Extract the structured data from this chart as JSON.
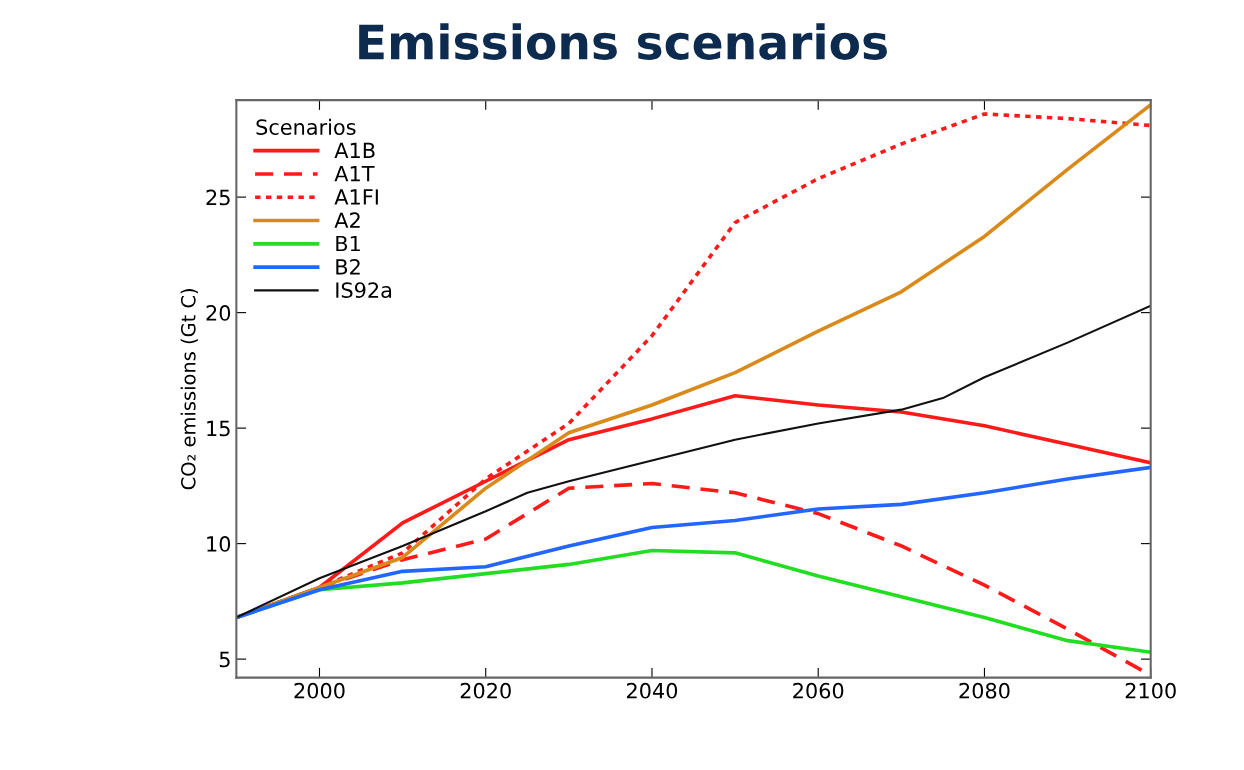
{
  "chart_data": {
    "type": "line",
    "title": "Emissions scenarios",
    "ylabel": "CO₂ emissions (Gt C)",
    "legend_title": "Scenarios",
    "legend": "top left",
    "grid": false,
    "x": [
      1990,
      2000,
      2010,
      2020,
      2030,
      2040,
      2050,
      2060,
      2070,
      2080,
      2090,
      2100
    ],
    "xlim": [
      1990,
      2100
    ],
    "xticks": [
      2000,
      2020,
      2040,
      2060,
      2080,
      2100
    ],
    "ylim": [
      4.2,
      29.2
    ],
    "yticks": [
      5,
      10,
      15,
      20,
      25
    ],
    "series": [
      {
        "name": "A1B",
        "color": "#ff1a1a",
        "line_style": "solid",
        "values": [
          6.8,
          8.1,
          10.9,
          12.7,
          14.5,
          15.4,
          16.4,
          16.0,
          15.7,
          15.1,
          14.3,
          13.5
        ]
      },
      {
        "name": "A1T",
        "color": "#ff1a1a",
        "line_style": "dashed",
        "values": [
          6.8,
          8.1,
          9.3,
          10.2,
          12.4,
          12.6,
          12.2,
          11.3,
          9.9,
          8.2,
          6.3,
          4.3
        ]
      },
      {
        "name": "A1FI",
        "color": "#ff1a1a",
        "line_style": "dotted",
        "values": [
          6.8,
          8.1,
          9.6,
          12.8,
          15.2,
          19.0,
          23.9,
          25.8,
          27.3,
          28.6,
          28.4,
          28.1
        ]
      },
      {
        "name": "A2",
        "color": "#d98a1a",
        "line_style": "solid",
        "values": [
          6.8,
          8.1,
          9.4,
          12.4,
          14.8,
          16.0,
          17.4,
          19.2,
          20.9,
          23.3,
          26.2,
          29.0
        ]
      },
      {
        "name": "B1",
        "color": "#22dd22",
        "line_style": "solid",
        "values": [
          6.8,
          8.0,
          8.3,
          8.7,
          9.1,
          9.7,
          9.6,
          8.6,
          7.7,
          6.8,
          5.8,
          5.3
        ]
      },
      {
        "name": "B2",
        "color": "#2266ff",
        "line_style": "solid",
        "values": [
          6.8,
          8.0,
          8.8,
          9.0,
          9.9,
          10.7,
          11.0,
          11.5,
          11.7,
          12.2,
          12.8,
          13.3
        ]
      },
      {
        "name": "IS92a",
        "color": "#111111",
        "line_style": "solid",
        "x": [
          1990,
          2000,
          2010,
          2020,
          2025,
          2030,
          2040,
          2050,
          2060,
          2070,
          2075,
          2080,
          2090,
          2100
        ],
        "values": [
          6.8,
          8.5,
          9.9,
          11.4,
          12.2,
          12.7,
          13.6,
          14.5,
          15.2,
          15.8,
          16.3,
          17.2,
          18.7,
          20.3
        ]
      }
    ]
  }
}
